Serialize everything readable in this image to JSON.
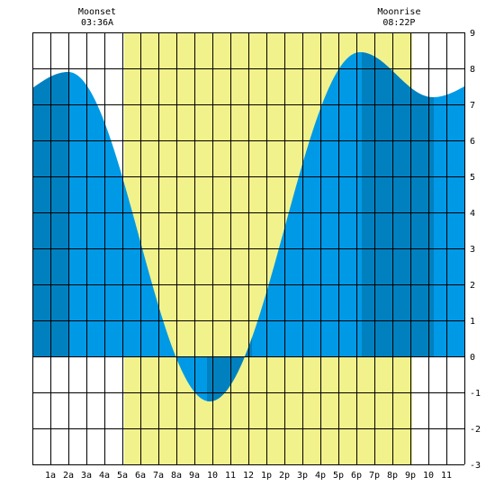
{
  "moon_events": {
    "moonset": {
      "title": "Moonset",
      "time": "03:36A"
    },
    "moonrise": {
      "title": "Moonrise",
      "time": "08:22P"
    }
  },
  "colors": {
    "daylight": "#f2f28c",
    "tide_light": "#0099e6",
    "tide_dark": "#0080bf",
    "grid": "#000000",
    "background": "#ffffff"
  },
  "chart_data": {
    "type": "area",
    "x_unit": "hour of day",
    "xlim": [
      0,
      24
    ],
    "ylim": [
      -3,
      9
    ],
    "x_tick_labels": [
      "1a",
      "2a",
      "3a",
      "4a",
      "5a",
      "6a",
      "7a",
      "8a",
      "9a",
      "10",
      "11",
      "12",
      "1p",
      "2p",
      "3p",
      "4p",
      "5p",
      "6p",
      "7p",
      "8p",
      "9p",
      "10",
      "11"
    ],
    "y_tick_labels": [
      "9",
      "8",
      "7",
      "6",
      "5",
      "4",
      "3",
      "2",
      "1",
      "0",
      "-1",
      "-2",
      "-3"
    ],
    "grid": true,
    "daylight_hours": [
      5.1,
      21.1
    ],
    "moonset_hour": 3.6,
    "moonrise_hour": 20.37,
    "tide_extremes": [
      {
        "type": "high",
        "hour": 2.0,
        "height": 7.9
      },
      {
        "type": "low",
        "hour": 9.85,
        "height": -1.25
      },
      {
        "type": "high",
        "hour": 18.2,
        "height": 8.45
      },
      {
        "type": "low",
        "hour": 22.25,
        "height": 7.2
      }
    ],
    "tide_start": {
      "hour": 0,
      "height": 7.45
    },
    "tide_end": {
      "hour": 24,
      "height": 7.5
    },
    "shade_bands_hours": [
      [
        0,
        2.0
      ],
      [
        9.7,
        12.2
      ],
      [
        18.3,
        22.3
      ]
    ]
  }
}
